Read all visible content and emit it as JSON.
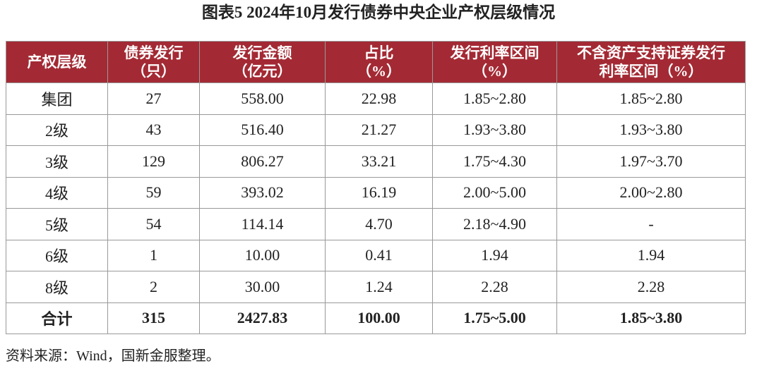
{
  "title": "图表5 2024年10月发行债券中央企业产权层级情况",
  "table": {
    "header": [
      "产权层级",
      "债券发行\n（只）",
      "发行金额\n（亿元）",
      "占比\n（%）",
      "发行利率区间\n（%）",
      "不含资产支持证券发行\n利率区间（%）"
    ],
    "rows": [
      [
        "集团",
        "27",
        "558.00",
        "22.98",
        "1.85~2.80",
        "1.85~2.80"
      ],
      [
        "2级",
        "43",
        "516.40",
        "21.27",
        "1.93~3.80",
        "1.93~3.80"
      ],
      [
        "3级",
        "129",
        "806.27",
        "33.21",
        "1.75~4.30",
        "1.97~3.70"
      ],
      [
        "4级",
        "59",
        "393.02",
        "16.19",
        "2.00~5.00",
        "2.00~2.80"
      ],
      [
        "5级",
        "54",
        "114.14",
        "4.70",
        "2.18~4.90",
        "-"
      ],
      [
        "6级",
        "1",
        "10.00",
        "0.41",
        "1.94",
        "1.94"
      ],
      [
        "8级",
        "2",
        "30.00",
        "1.24",
        "2.28",
        "2.28"
      ],
      [
        "合计",
        "315",
        "2427.83",
        "100.00",
        "1.75~5.00",
        "1.85~3.80"
      ]
    ]
  },
  "source": "资料来源：Wind，国新金服整理。"
}
